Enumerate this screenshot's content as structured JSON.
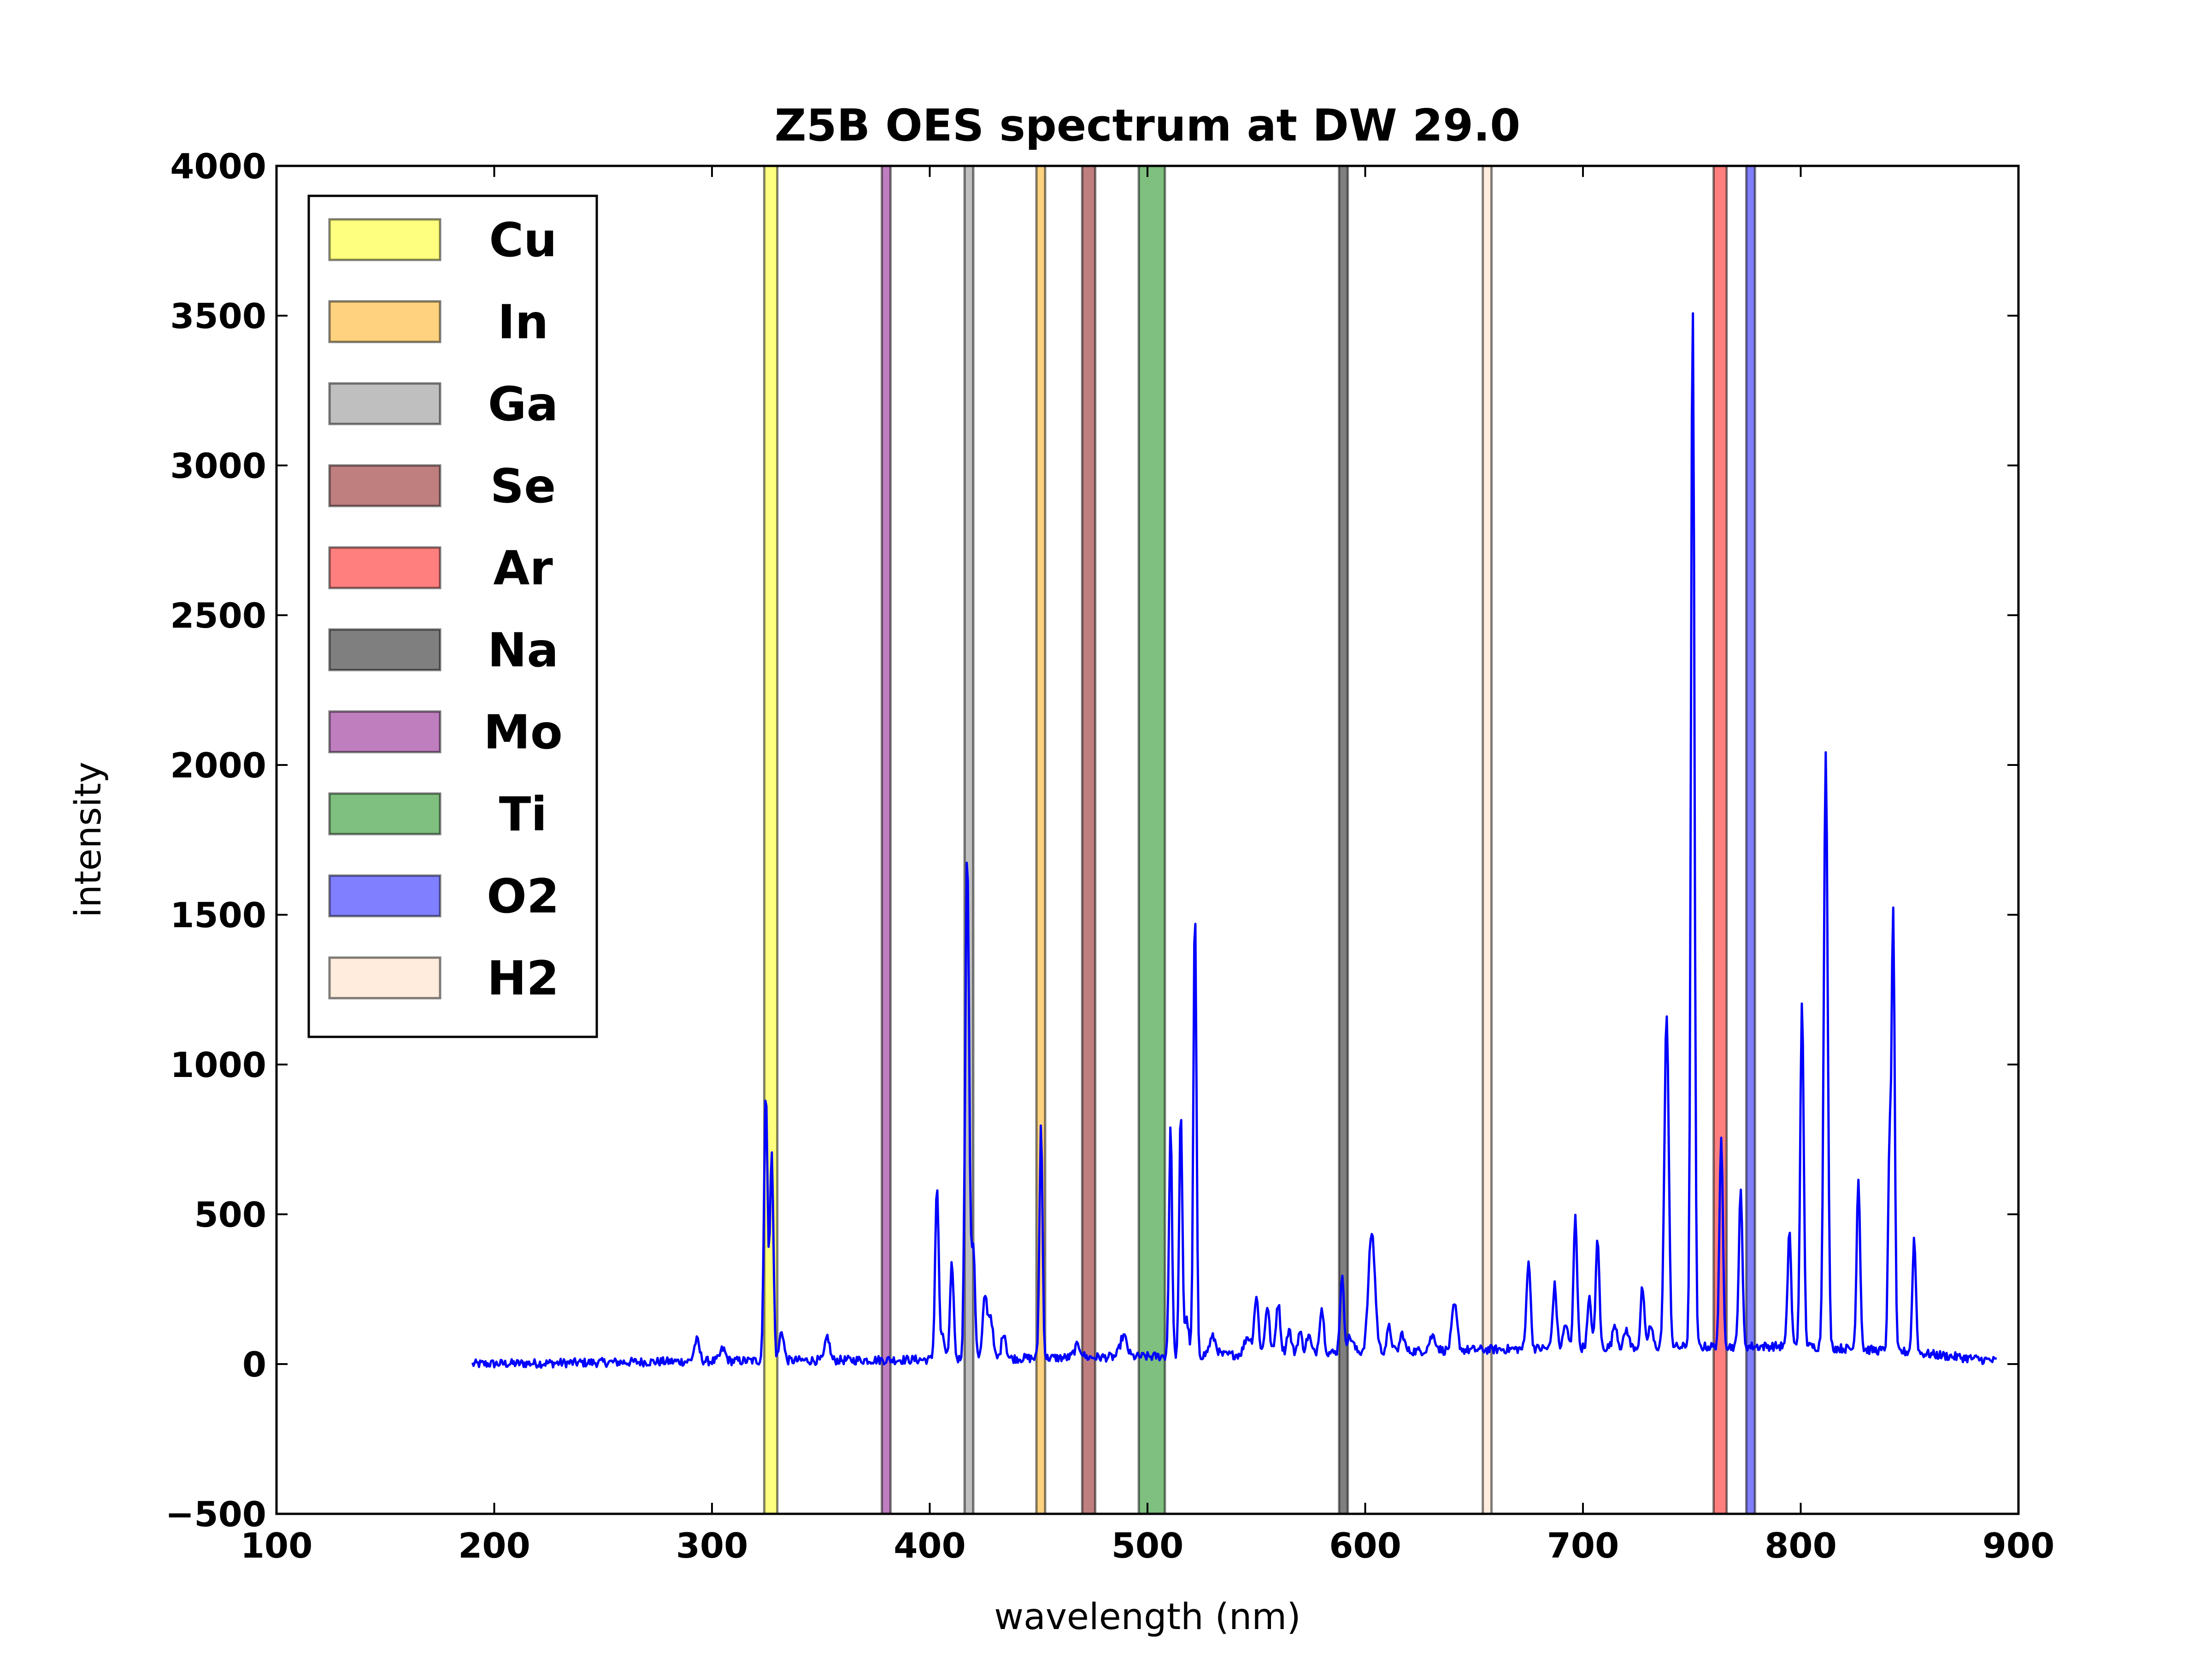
{
  "chart_data": {
    "type": "line",
    "title": "Z5B OES spectrum at DW 29.0",
    "xlabel": "wavelength (nm)",
    "ylabel": "intensity",
    "xlim": [
      100,
      900
    ],
    "ylim": [
      -500,
      4000
    ],
    "xticks": [
      100,
      200,
      300,
      400,
      500,
      600,
      700,
      800,
      900
    ],
    "yticks": [
      -500,
      0,
      500,
      1000,
      1500,
      2000,
      2500,
      3000,
      3500,
      4000
    ],
    "ytick_labels": [
      "−500",
      "0",
      "500",
      "1000",
      "1500",
      "2000",
      "2500",
      "3000",
      "3500",
      "4000"
    ],
    "grid": false,
    "legend_position": "upper-left",
    "series": [
      {
        "color": "#0000ff",
        "x_range": [
          190,
          890
        ],
        "baseline": [
          [
            190,
            0
          ],
          [
            300,
            10
          ],
          [
            400,
            15
          ],
          [
            500,
            25
          ],
          [
            600,
            40
          ],
          [
            700,
            55
          ],
          [
            800,
            60
          ],
          [
            850,
            40
          ],
          [
            890,
            10
          ]
        ],
        "peaks": [
          [
            293,
            70,
            1.2
          ],
          [
            305,
            40,
            1.2
          ],
          [
            324.7,
            900,
            0.8
          ],
          [
            327.4,
            690,
            0.8
          ],
          [
            332,
            100,
            1
          ],
          [
            353,
            80,
            1
          ],
          [
            403.3,
            580,
            0.8
          ],
          [
            406,
            70,
            1
          ],
          [
            410.2,
            320,
            0.8
          ],
          [
            417.2,
            1690,
            0.9
          ],
          [
            420,
            380,
            0.8
          ],
          [
            425.4,
            210,
            1
          ],
          [
            428,
            140,
            1
          ],
          [
            434,
            90,
            1
          ],
          [
            451.1,
            780,
            0.7
          ],
          [
            468,
            40,
            1.5
          ],
          [
            489,
            70,
            1.5
          ],
          [
            510.6,
            770,
            0.7
          ],
          [
            515.3,
            820,
            0.7
          ],
          [
            518,
            120,
            1
          ],
          [
            521.8,
            1500,
            0.7
          ],
          [
            530,
            60,
            1.5
          ],
          [
            546,
            60,
            1.5
          ],
          [
            550,
            190,
            1
          ],
          [
            555,
            160,
            1
          ],
          [
            560,
            170,
            1
          ],
          [
            565,
            80,
            1
          ],
          [
            570,
            70,
            1
          ],
          [
            574,
            60,
            1
          ],
          [
            580,
            150,
            1
          ],
          [
            589,
            140,
            0.8
          ],
          [
            589.6,
            130,
            0.8
          ],
          [
            593,
            50,
            1.5
          ],
          [
            603,
            400,
            1.5
          ],
          [
            611,
            80,
            1
          ],
          [
            617,
            60,
            1
          ],
          [
            631,
            50,
            1.5
          ],
          [
            641,
            150,
            1.2
          ],
          [
            675,
            300,
            0.9
          ],
          [
            687,
            210,
            0.9
          ],
          [
            692,
            80,
            1
          ],
          [
            696.5,
            450,
            0.8
          ],
          [
            703,
            160,
            0.9
          ],
          [
            706.7,
            370,
            0.8
          ],
          [
            714.7,
            80,
            1
          ],
          [
            720,
            60,
            1
          ],
          [
            727.3,
            200,
            0.8
          ],
          [
            731,
            70,
            1
          ],
          [
            738.4,
            1110,
            1
          ],
          [
            750.4,
            3490,
            0.8
          ],
          [
            763.5,
            690,
            0.8
          ],
          [
            772.4,
            530,
            0.8
          ],
          [
            794.8,
            390,
            0.8
          ],
          [
            800.6,
            1140,
            0.8
          ],
          [
            811.5,
            1980,
            0.9
          ],
          [
            826.5,
            570,
            0.8
          ],
          [
            840.8,
            660,
            0.7
          ],
          [
            842.5,
            1450,
            0.7
          ],
          [
            852.1,
            380,
            0.8
          ]
        ]
      }
    ],
    "legend": [
      {
        "label": "Cu",
        "color": "#ffff00"
      },
      {
        "label": "In",
        "color": "#ffa500"
      },
      {
        "label": "Ga",
        "color": "#808080"
      },
      {
        "label": "Se",
        "color": "#800000"
      },
      {
        "label": "Ar",
        "color": "#ff0000"
      },
      {
        "label": "Na",
        "color": "#000000"
      },
      {
        "label": "Mo",
        "color": "#800080"
      },
      {
        "label": "Ti",
        "color": "#008000"
      },
      {
        "label": "O2",
        "color": "#0000ff"
      },
      {
        "label": "H2",
        "color": "#ffdab9"
      }
    ],
    "bands": [
      {
        "label": "Cu",
        "color": "#ffff00",
        "x": [
          324,
          330
        ]
      },
      {
        "label": "Mo",
        "color": "#800080",
        "x": [
          378,
          382
        ]
      },
      {
        "label": "Ga",
        "color": "#808080",
        "x": [
          416,
          420
        ]
      },
      {
        "label": "In",
        "color": "#ffa500",
        "x": [
          449,
          453
        ]
      },
      {
        "label": "Se",
        "color": "#800000",
        "x": [
          470,
          476
        ]
      },
      {
        "label": "Ti",
        "color": "#008000",
        "x": [
          496,
          508
        ]
      },
      {
        "label": "Na",
        "color": "#000000",
        "x": [
          588,
          592
        ]
      },
      {
        "label": "H2",
        "color": "#ffdab9",
        "x": [
          654,
          658
        ]
      },
      {
        "label": "Ar",
        "color": "#ff0000",
        "x": [
          760,
          766
        ]
      },
      {
        "label": "O2",
        "color": "#0000ff",
        "x": [
          775,
          779
        ]
      }
    ]
  }
}
